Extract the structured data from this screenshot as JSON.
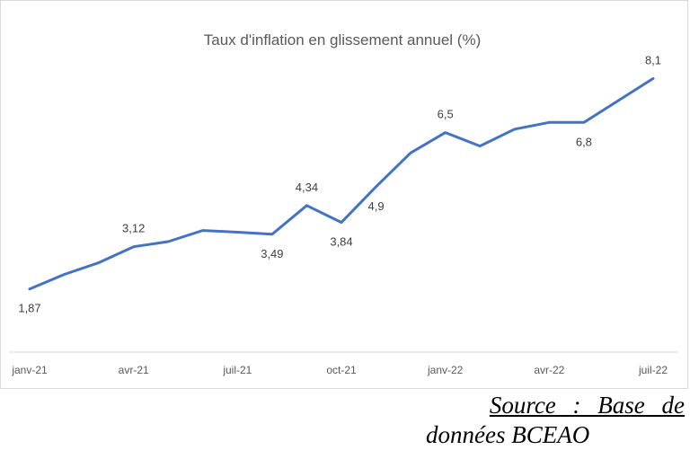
{
  "chart_data": {
    "type": "line",
    "title": "Taux d'inflation en glissement annuel (%)",
    "xlabel": "",
    "ylabel": "",
    "x": [
      "janv-21",
      "févr-21",
      "mars-21",
      "avr-21",
      "mai-21",
      "juin-21",
      "juil-21",
      "août-21",
      "sept-21",
      "oct-21",
      "nov-21",
      "déc-21",
      "janv-22",
      "févr-22",
      "mars-22",
      "avr-22",
      "mai-22",
      "juin-22",
      "juil-22"
    ],
    "tick_labels": [
      "janv-21",
      "avr-21",
      "juil-21",
      "oct-21",
      "janv-22",
      "avr-22",
      "juil-22"
    ],
    "series": [
      {
        "name": "",
        "values": [
          1.87,
          2.3,
          2.65,
          3.12,
          3.27,
          3.6,
          3.55,
          3.49,
          4.34,
          3.84,
          4.9,
          5.9,
          6.5,
          6.1,
          6.6,
          6.8,
          6.8,
          7.45,
          8.1
        ],
        "color": "#4472c4"
      }
    ],
    "data_labels": [
      {
        "index": 0,
        "text": "1,87",
        "pos": "below"
      },
      {
        "index": 3,
        "text": "3,12",
        "pos": "above"
      },
      {
        "index": 7,
        "text": "3,49",
        "pos": "below"
      },
      {
        "index": 8,
        "text": "4,34",
        "pos": "above"
      },
      {
        "index": 9,
        "text": "3,84",
        "pos": "below"
      },
      {
        "index": 10,
        "text": "4,9",
        "pos": "below"
      },
      {
        "index": 12,
        "text": "6,5",
        "pos": "above"
      },
      {
        "index": 16,
        "text": "6,8",
        "pos": "below"
      },
      {
        "index": 18,
        "text": "8,1",
        "pos": "above"
      }
    ],
    "ylim": [
      0,
      9.6
    ],
    "grid": false,
    "legend": "none"
  },
  "source": {
    "line1": "Source : Base de",
    "line2": "données BCEAO"
  }
}
